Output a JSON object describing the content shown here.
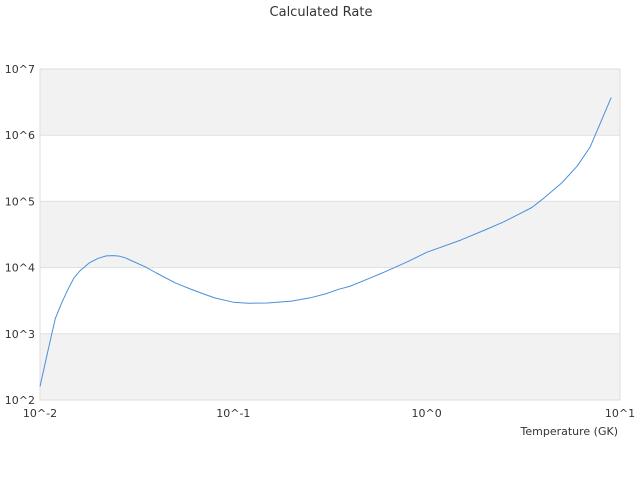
{
  "chart_data": {
    "type": "line",
    "title": "Calculated Rate",
    "xlabel": "Temperature (GK)",
    "ylabel": "",
    "xscale": "log",
    "yscale": "log",
    "xlim": [
      0.01,
      10
    ],
    "ylim": [
      100,
      10000000
    ],
    "x_tick_labels": [
      "10^-2",
      "10^-1",
      "10^0",
      "10^1"
    ],
    "y_tick_labels": [
      "10^2",
      "10^3",
      "10^4",
      "10^5",
      "10^6",
      "10^7"
    ],
    "grid": "alternating horizontal bands",
    "legend": "none",
    "series": [
      {
        "color": "#4a90d9",
        "x": [
          0.01,
          0.011,
          0.012,
          0.013,
          0.014,
          0.015,
          0.016,
          0.018,
          0.02,
          0.022,
          0.024,
          0.026,
          0.028,
          0.03,
          0.035,
          0.04,
          0.05,
          0.06,
          0.07,
          0.08,
          0.1,
          0.12,
          0.15,
          0.2,
          0.25,
          0.3,
          0.35,
          0.4,
          0.5,
          0.6,
          0.8,
          1.0,
          1.5,
          2.0,
          2.5,
          3.0,
          3.5,
          4.0,
          5.0,
          6.0,
          7.0,
          9.0
        ],
        "y": [
          160,
          560,
          1700,
          3000,
          4800,
          7000,
          8800,
          11800,
          13800,
          15000,
          15200,
          14800,
          13800,
          12600,
          10300,
          8300,
          5900,
          4750,
          4000,
          3480,
          3000,
          2900,
          2920,
          3120,
          3500,
          4000,
          4700,
          5200,
          6800,
          8500,
          12300,
          17000,
          26000,
          37000,
          49000,
          64000,
          81000,
          110000,
          190000,
          340000,
          660000,
          3700000
        ]
      }
    ]
  }
}
